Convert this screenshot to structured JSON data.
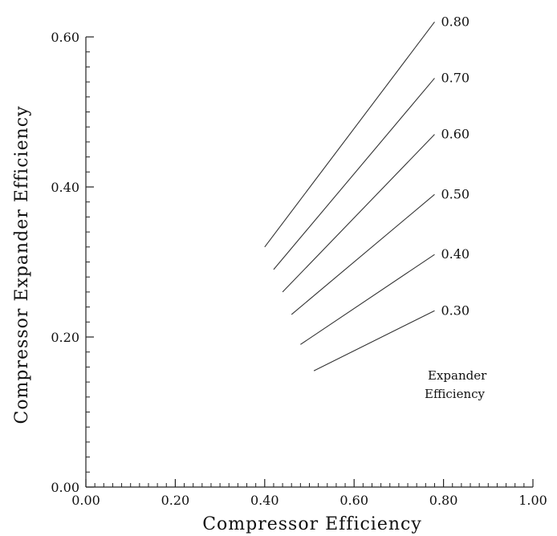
{
  "chart_data": {
    "type": "line",
    "xlabel": "Compressor  Efficiency",
    "ylabel": "Compressor  Expander  Efficiency",
    "xlim": [
      0,
      1
    ],
    "ylim": [
      0,
      0.6
    ],
    "x_ticks": [
      "0.00",
      "0.20",
      "0.40",
      "0.60",
      "0.80",
      "1.00"
    ],
    "y_ticks": [
      "0.00",
      "0.20",
      "0.40",
      "0.60"
    ],
    "legend_title": [
      "Expander",
      "Efficiency"
    ],
    "grid": false,
    "series": [
      {
        "name": "0.80",
        "x": [
          0.4,
          0.78
        ],
        "y": [
          0.32,
          0.62
        ]
      },
      {
        "name": "0.70",
        "x": [
          0.42,
          0.78
        ],
        "y": [
          0.29,
          0.545
        ]
      },
      {
        "name": "0.60",
        "x": [
          0.44,
          0.78
        ],
        "y": [
          0.26,
          0.47
        ]
      },
      {
        "name": "0.50",
        "x": [
          0.46,
          0.78
        ],
        "y": [
          0.23,
          0.39
        ]
      },
      {
        "name": "0.40",
        "x": [
          0.48,
          0.78
        ],
        "y": [
          0.19,
          0.31
        ]
      },
      {
        "name": "0.30",
        "x": [
          0.51,
          0.78
        ],
        "y": [
          0.155,
          0.235
        ]
      }
    ]
  }
}
